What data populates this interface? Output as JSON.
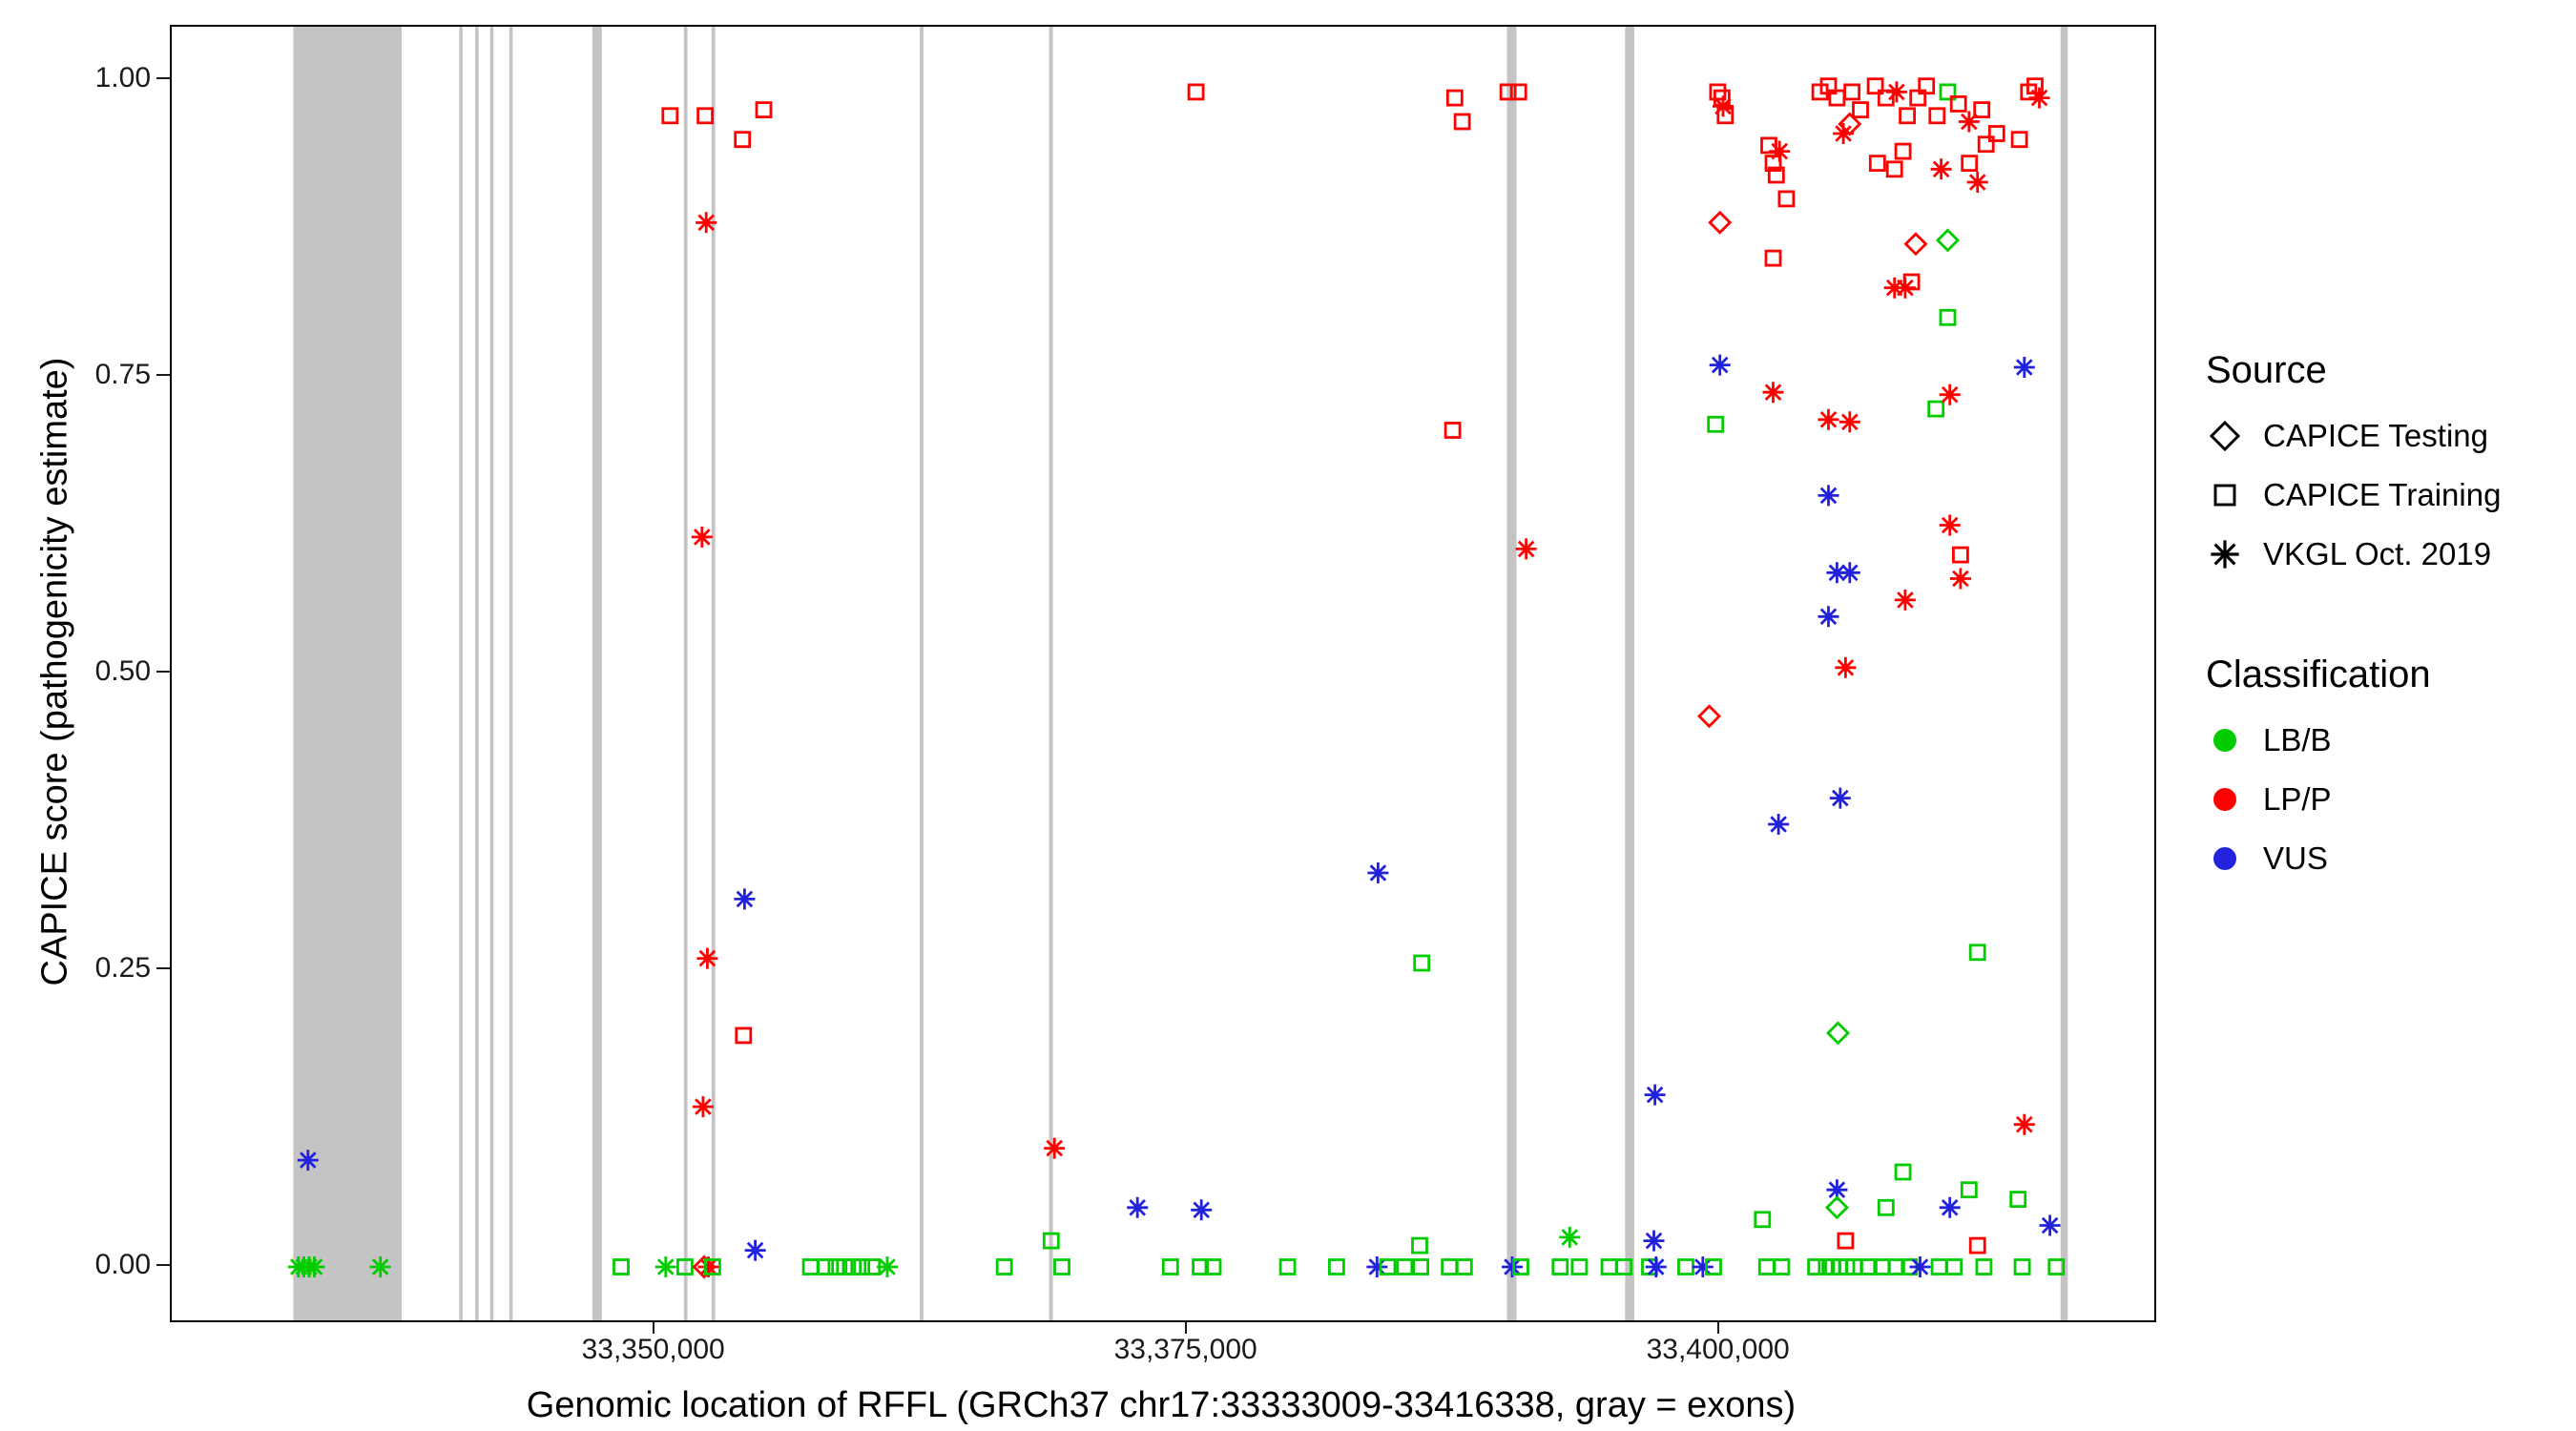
{
  "figure": {
    "exon_color": "#c4c4c4",
    "panel_border_color": "#000000",
    "x_axis": {
      "ticks": [
        {
          "value": 33350000,
          "label": "33,350,000"
        },
        {
          "value": 33375000,
          "label": "33,375,000"
        },
        {
          "value": 33400000,
          "label": "33,400,000"
        }
      ]
    },
    "y_axis": {
      "ticks": [
        {
          "value": 0.0,
          "label": "0.00"
        },
        {
          "value": 0.25,
          "label": "0.25"
        },
        {
          "value": 0.5,
          "label": "0.50"
        },
        {
          "value": 0.75,
          "label": "0.75"
        },
        {
          "value": 1.0,
          "label": "1.00"
        }
      ]
    },
    "legend": {
      "source": {
        "title": "Source",
        "items": [
          {
            "label": "CAPICE Testing",
            "marker": "diamond"
          },
          {
            "label": "CAPICE Training",
            "marker": "square"
          },
          {
            "label": "VKGL Oct. 2019",
            "marker": "asterisk"
          }
        ]
      },
      "classification": {
        "title": "Classification",
        "items": [
          {
            "label": "LB/B",
            "color_key": "B"
          },
          {
            "label": "LP/P",
            "color_key": "P"
          },
          {
            "label": "VUS",
            "color_key": "U"
          }
        ]
      }
    }
  },
  "chart_data": {
    "type": "scatter",
    "title": "",
    "xlabel": "Genomic location of RFFL (GRCh37 chr17:33333009-33416338, gray = exons)",
    "ylabel": "CAPICE score (pathogenicity estimate)",
    "xlim": [
      33327300,
      33420400
    ],
    "ylim": [
      -0.045,
      1.045
    ],
    "gene_region": [
      33333009,
      33416338
    ],
    "class_colors": {
      "B": "#00CC00",
      "P": "#FF0000",
      "U": "#2222DD"
    },
    "source_shapes": {
      "T": "diamond",
      "R": "square",
      "V": "asterisk"
    },
    "exons": [
      [
        33333009,
        33338100
      ],
      [
        33340800,
        33340960
      ],
      [
        33341550,
        33341710
      ],
      [
        33342250,
        33342410
      ],
      [
        33343150,
        33343310
      ],
      [
        33347050,
        33347500
      ],
      [
        33351350,
        33351520
      ],
      [
        33352650,
        33352820
      ],
      [
        33362430,
        33362600
      ],
      [
        33368500,
        33368680
      ],
      [
        33390000,
        33390450
      ],
      [
        33395550,
        33395980
      ],
      [
        33416000,
        33416338
      ]
    ],
    "point_format": [
      "genomic_position",
      "capice_score",
      "source: T=CAPICE Testing, R=CAPICE Training, V=VKGL Oct. 2019",
      "class: B=LB/B, P=LP/P, U=VUS"
    ],
    "points": [
      [
        33333250,
        0.0,
        "V",
        "B"
      ],
      [
        33333500,
        0.0,
        "V",
        "B"
      ],
      [
        33333700,
        0.09,
        "V",
        "U"
      ],
      [
        33333750,
        0.0,
        "V",
        "B"
      ],
      [
        33334000,
        0.0,
        "V",
        "B"
      ],
      [
        33337100,
        0.0,
        "V",
        "B"
      ],
      [
        33348400,
        0.0,
        "R",
        "B"
      ],
      [
        33350500,
        0.0,
        "V",
        "B"
      ],
      [
        33350700,
        0.97,
        "R",
        "P"
      ],
      [
        33351400,
        0.0,
        "R",
        "B"
      ],
      [
        33352200,
        0.615,
        "V",
        "P"
      ],
      [
        33352250,
        0.135,
        "V",
        "P"
      ],
      [
        33352300,
        0.0,
        "T",
        "P"
      ],
      [
        33352350,
        0.97,
        "R",
        "P"
      ],
      [
        33352400,
        0.88,
        "V",
        "P"
      ],
      [
        33352450,
        0.26,
        "V",
        "P"
      ],
      [
        33352500,
        0.0,
        "V",
        "P"
      ],
      [
        33352700,
        0.0,
        "R",
        "B"
      ],
      [
        33354100,
        0.95,
        "R",
        "P"
      ],
      [
        33354150,
        0.195,
        "R",
        "P"
      ],
      [
        33354200,
        0.31,
        "V",
        "U"
      ],
      [
        33354700,
        0.014,
        "V",
        "U"
      ],
      [
        33355100,
        0.975,
        "R",
        "P"
      ],
      [
        33357300,
        0.0,
        "R",
        "B"
      ],
      [
        33358000,
        0.0,
        "R",
        "B"
      ],
      [
        33358500,
        0.0,
        "R",
        "B"
      ],
      [
        33358900,
        0.0,
        "R",
        "B"
      ],
      [
        33359300,
        0.0,
        "R",
        "B"
      ],
      [
        33359700,
        0.0,
        "R",
        "B"
      ],
      [
        33360200,
        0.0,
        "R",
        "B"
      ],
      [
        33360900,
        0.0,
        "V",
        "B"
      ],
      [
        33366400,
        0.0,
        "R",
        "B"
      ],
      [
        33368600,
        0.022,
        "R",
        "B"
      ],
      [
        33368750,
        0.1,
        "V",
        "P"
      ],
      [
        33369100,
        0.0,
        "R",
        "B"
      ],
      [
        33372650,
        0.05,
        "V",
        "U"
      ],
      [
        33374200,
        0.0,
        "R",
        "B"
      ],
      [
        33375400,
        0.99,
        "R",
        "P"
      ],
      [
        33375600,
        0.0,
        "R",
        "B"
      ],
      [
        33375650,
        0.048,
        "V",
        "U"
      ],
      [
        33376200,
        0.0,
        "R",
        "B"
      ],
      [
        33379700,
        0.0,
        "R",
        "B"
      ],
      [
        33382000,
        0.0,
        "R",
        "B"
      ],
      [
        33383900,
        0.0,
        "V",
        "U"
      ],
      [
        33383950,
        0.332,
        "V",
        "U"
      ],
      [
        33384400,
        0.0,
        "R",
        "B"
      ],
      [
        33385200,
        0.0,
        "R",
        "B"
      ],
      [
        33385900,
        0.018,
        "R",
        "B"
      ],
      [
        33385950,
        0.0,
        "R",
        "B"
      ],
      [
        33386000,
        0.256,
        "R",
        "B"
      ],
      [
        33387300,
        0.0,
        "R",
        "B"
      ],
      [
        33387450,
        0.705,
        "R",
        "P"
      ],
      [
        33387550,
        0.985,
        "R",
        "P"
      ],
      [
        33387900,
        0.965,
        "R",
        "P"
      ],
      [
        33388000,
        0.0,
        "R",
        "B"
      ],
      [
        33390050,
        0.99,
        "R",
        "P"
      ],
      [
        33390250,
        0.0,
        "V",
        "U"
      ],
      [
        33390550,
        0.99,
        "R",
        "P"
      ],
      [
        33390650,
        0.0,
        "R",
        "B"
      ],
      [
        33390900,
        0.605,
        "V",
        "P"
      ],
      [
        33392500,
        0.0,
        "R",
        "B"
      ],
      [
        33392950,
        0.025,
        "V",
        "B"
      ],
      [
        33393400,
        0.0,
        "R",
        "B"
      ],
      [
        33394800,
        0.0,
        "R",
        "B"
      ],
      [
        33395500,
        0.0,
        "R",
        "B"
      ],
      [
        33396700,
        0.0,
        "R",
        "B"
      ],
      [
        33396900,
        0.022,
        "V",
        "U"
      ],
      [
        33396950,
        0.145,
        "V",
        "U"
      ],
      [
        33397000,
        0.0,
        "V",
        "U"
      ],
      [
        33398400,
        0.0,
        "R",
        "B"
      ],
      [
        33399200,
        0.0,
        "V",
        "U"
      ],
      [
        33399500,
        0.464,
        "T",
        "P"
      ],
      [
        33399700,
        0.0,
        "R",
        "B"
      ],
      [
        33399800,
        0.71,
        "R",
        "B"
      ],
      [
        33399900,
        0.99,
        "R",
        "P"
      ],
      [
        33400000,
        0.88,
        "T",
        "P"
      ],
      [
        33400000,
        0.76,
        "V",
        "U"
      ],
      [
        33400100,
        0.985,
        "R",
        "P"
      ],
      [
        33400150,
        0.978,
        "V",
        "P"
      ],
      [
        33400250,
        0.97,
        "R",
        "P"
      ],
      [
        33402000,
        0.04,
        "R",
        "B"
      ],
      [
        33402200,
        0.0,
        "R",
        "B"
      ],
      [
        33402300,
        0.945,
        "R",
        "P"
      ],
      [
        33402500,
        0.93,
        "R",
        "P"
      ],
      [
        33402500,
        0.85,
        "R",
        "P"
      ],
      [
        33402500,
        0.737,
        "V",
        "P"
      ],
      [
        33402650,
        0.92,
        "R",
        "P"
      ],
      [
        33402750,
        0.373,
        "V",
        "U"
      ],
      [
        33402800,
        0.94,
        "V",
        "P"
      ],
      [
        33402900,
        0.0,
        "R",
        "B"
      ],
      [
        33403125,
        0.9,
        "R",
        "P"
      ],
      [
        33404500,
        0.0,
        "R",
        "B"
      ],
      [
        33404700,
        0.99,
        "R",
        "P"
      ],
      [
        33405000,
        0.0,
        "R",
        "B"
      ],
      [
        33405100,
        0.995,
        "R",
        "P"
      ],
      [
        33405100,
        0.714,
        "V",
        "P"
      ],
      [
        33405100,
        0.65,
        "V",
        "U"
      ],
      [
        33405100,
        0.548,
        "V",
        "U"
      ],
      [
        33405300,
        0.0,
        "R",
        "B"
      ],
      [
        33405500,
        0.985,
        "R",
        "P"
      ],
      [
        33405500,
        0.585,
        "V",
        "U"
      ],
      [
        33405500,
        0.065,
        "V",
        "U"
      ],
      [
        33405500,
        0.05,
        "T",
        "B"
      ],
      [
        33405550,
        0.197,
        "T",
        "B"
      ],
      [
        33405600,
        0.0,
        "R",
        "B"
      ],
      [
        33405650,
        0.395,
        "V",
        "U"
      ],
      [
        33405800,
        0.955,
        "V",
        "P"
      ],
      [
        33405900,
        0.505,
        "V",
        "P"
      ],
      [
        33405900,
        0.022,
        "R",
        "P"
      ],
      [
        33405950,
        0.0,
        "R",
        "B"
      ],
      [
        33406100,
        0.963,
        "T",
        "P"
      ],
      [
        33406100,
        0.712,
        "V",
        "P"
      ],
      [
        33406100,
        0.585,
        "V",
        "U"
      ],
      [
        33406200,
        0.99,
        "R",
        "P"
      ],
      [
        33406300,
        0.0,
        "R",
        "B"
      ],
      [
        33406600,
        0.975,
        "R",
        "P"
      ],
      [
        33407000,
        0.0,
        "R",
        "B"
      ],
      [
        33407300,
        0.995,
        "R",
        "P"
      ],
      [
        33407400,
        0.93,
        "R",
        "P"
      ],
      [
        33407600,
        0.0,
        "R",
        "B"
      ],
      [
        33407800,
        0.985,
        "R",
        "P"
      ],
      [
        33407800,
        0.05,
        "R",
        "B"
      ],
      [
        33408200,
        0.925,
        "R",
        "P"
      ],
      [
        33408200,
        0.825,
        "V",
        "P"
      ],
      [
        33408300,
        0.99,
        "V",
        "P"
      ],
      [
        33408300,
        0.0,
        "R",
        "B"
      ],
      [
        33408600,
        0.94,
        "R",
        "P"
      ],
      [
        33408600,
        0.08,
        "R",
        "B"
      ],
      [
        33408700,
        0.825,
        "V",
        "P"
      ],
      [
        33408700,
        0.562,
        "V",
        "P"
      ],
      [
        33408800,
        0.97,
        "R",
        "P"
      ],
      [
        33408900,
        0.0,
        "R",
        "B"
      ],
      [
        33409000,
        0.83,
        "R",
        "P"
      ],
      [
        33409200,
        0.862,
        "T",
        "P"
      ],
      [
        33409300,
        0.985,
        "R",
        "P"
      ],
      [
        33409400,
        0.0,
        "V",
        "U"
      ],
      [
        33409700,
        0.995,
        "R",
        "P"
      ],
      [
        33410150,
        0.723,
        "R",
        "B"
      ],
      [
        33410200,
        0.97,
        "R",
        "P"
      ],
      [
        33410300,
        0.0,
        "R",
        "B"
      ],
      [
        33410390,
        0.925,
        "V",
        "P"
      ],
      [
        33410700,
        0.99,
        "R",
        "B"
      ],
      [
        33410700,
        0.865,
        "T",
        "B"
      ],
      [
        33410700,
        0.8,
        "R",
        "B"
      ],
      [
        33410800,
        0.735,
        "V",
        "P"
      ],
      [
        33410800,
        0.625,
        "V",
        "P"
      ],
      [
        33410800,
        0.05,
        "V",
        "U"
      ],
      [
        33411000,
        0.0,
        "R",
        "B"
      ],
      [
        33411200,
        0.98,
        "R",
        "P"
      ],
      [
        33411300,
        0.6,
        "R",
        "P"
      ],
      [
        33411300,
        0.58,
        "V",
        "P"
      ],
      [
        33411700,
        0.965,
        "V",
        "P"
      ],
      [
        33411700,
        0.065,
        "R",
        "B"
      ],
      [
        33411719,
        0.93,
        "R",
        "P"
      ],
      [
        33412100,
        0.914,
        "V",
        "P"
      ],
      [
        33412100,
        0.265,
        "R",
        "B"
      ],
      [
        33412100,
        0.018,
        "R",
        "P"
      ],
      [
        33412300,
        0.975,
        "R",
        "P"
      ],
      [
        33412400,
        0.0,
        "R",
        "B"
      ],
      [
        33412500,
        0.946,
        "R",
        "P"
      ],
      [
        33413000,
        0.955,
        "R",
        "P"
      ],
      [
        33414000,
        0.057,
        "R",
        "B"
      ],
      [
        33414063,
        0.95,
        "R",
        "P"
      ],
      [
        33414200,
        0.0,
        "R",
        "B"
      ],
      [
        33414300,
        0.758,
        "V",
        "U"
      ],
      [
        33414300,
        0.12,
        "V",
        "P"
      ],
      [
        33414500,
        0.99,
        "R",
        "P"
      ],
      [
        33414800,
        0.995,
        "R",
        "P"
      ],
      [
        33415000,
        0.985,
        "V",
        "P"
      ],
      [
        33415500,
        0.035,
        "V",
        "U"
      ],
      [
        33415800,
        0.0,
        "R",
        "B"
      ]
    ]
  }
}
